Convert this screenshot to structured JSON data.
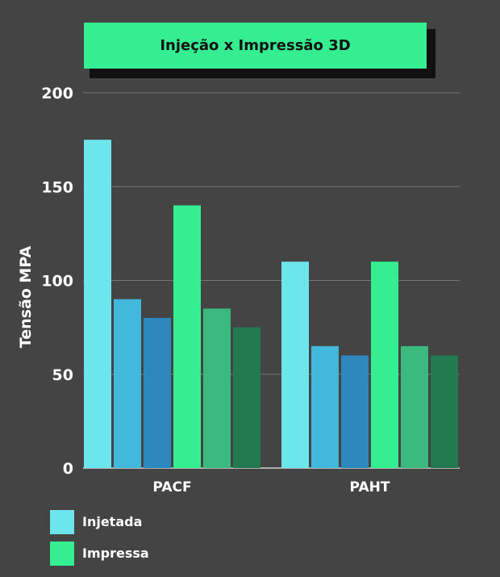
{
  "chart_data": {
    "type": "bar",
    "title": "Injeção x Impressão 3D",
    "ylabel": "Tensão MPA",
    "xlabel": "",
    "ylim": [
      0,
      200
    ],
    "yticks": [
      "0",
      "50",
      "100",
      "150",
      "200"
    ],
    "grid": true,
    "categories": [
      "PACF",
      "PAHT"
    ],
    "series": [
      {
        "values": [
          175,
          110
        ],
        "color": "#6de5ec"
      },
      {
        "values": [
          90,
          65
        ],
        "color": "#42b8dc"
      },
      {
        "values": [
          80,
          60
        ],
        "color": "#2e88bd"
      },
      {
        "values": [
          140,
          110
        ],
        "color": "#33ef92"
      },
      {
        "values": [
          85,
          65
        ],
        "color": "#3bb97e"
      },
      {
        "values": [
          75,
          60
        ],
        "color": "#237a50"
      }
    ],
    "legend": {
      "placement": "bottom-left",
      "items": [
        {
          "name": "Injetada",
          "color": "#6de5ec"
        },
        {
          "name": "Impressa",
          "color": "#33ef92"
        }
      ]
    }
  }
}
